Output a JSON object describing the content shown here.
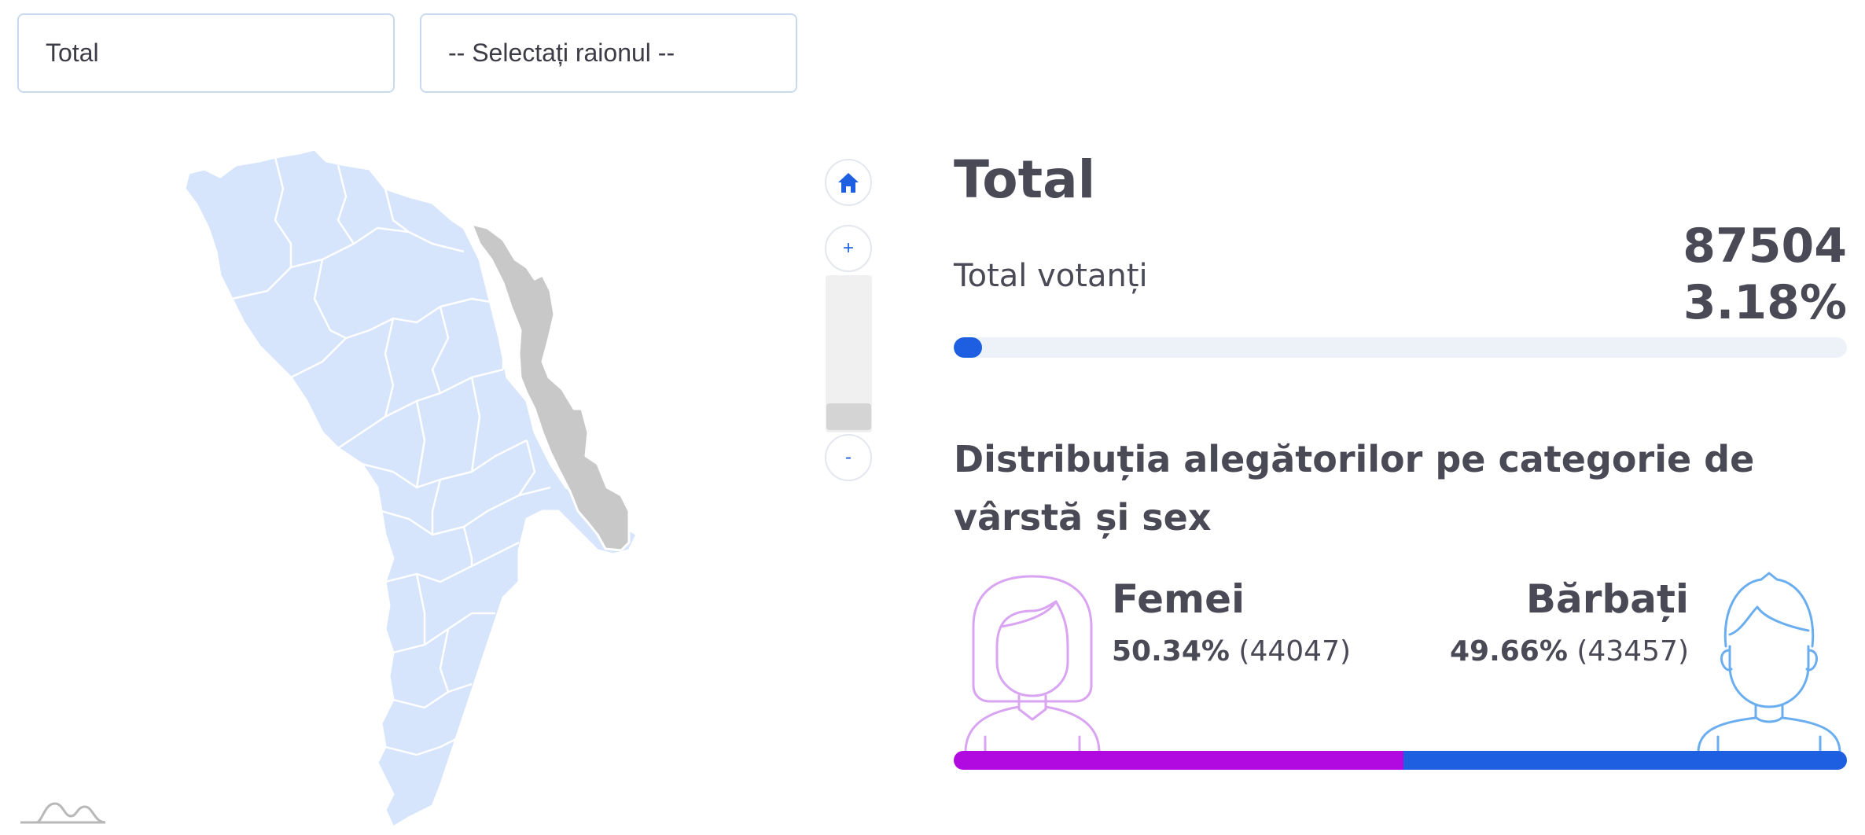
{
  "filters": {
    "region_selected": "Total",
    "district_placeholder": "-- Selectați raionul --"
  },
  "map": {
    "zoom_controls": {
      "zoom_in": "+",
      "zoom_out": "-"
    },
    "region_fill": "#d6e4fc",
    "region_border": "#ffffff",
    "transnistria_fill": "#c8c8c8"
  },
  "panel": {
    "title": "Total",
    "voters_label": "Total votanți",
    "voters_count": "87504",
    "voters_percent": "3.18%",
    "voters_fraction": 0.0318,
    "distribution_heading": "Distribuția alegătorilor pe categorie de vârstă și sex",
    "female": {
      "label": "Femei",
      "percent": "50.34%",
      "count": "(44047)",
      "fraction": 0.5034,
      "color": "#b00ae0",
      "icon_color": "#d9a4f2"
    },
    "male": {
      "label": "Bărbați",
      "percent": "49.66%",
      "count": "(43457)",
      "fraction": 0.4966,
      "color": "#1d5fe0",
      "icon_color": "#6aaef0"
    }
  },
  "icons": {
    "home": "home-icon",
    "female_avatar": "female-avatar-icon",
    "male_avatar": "male-avatar-icon",
    "logo": "mountain-logo-icon"
  }
}
